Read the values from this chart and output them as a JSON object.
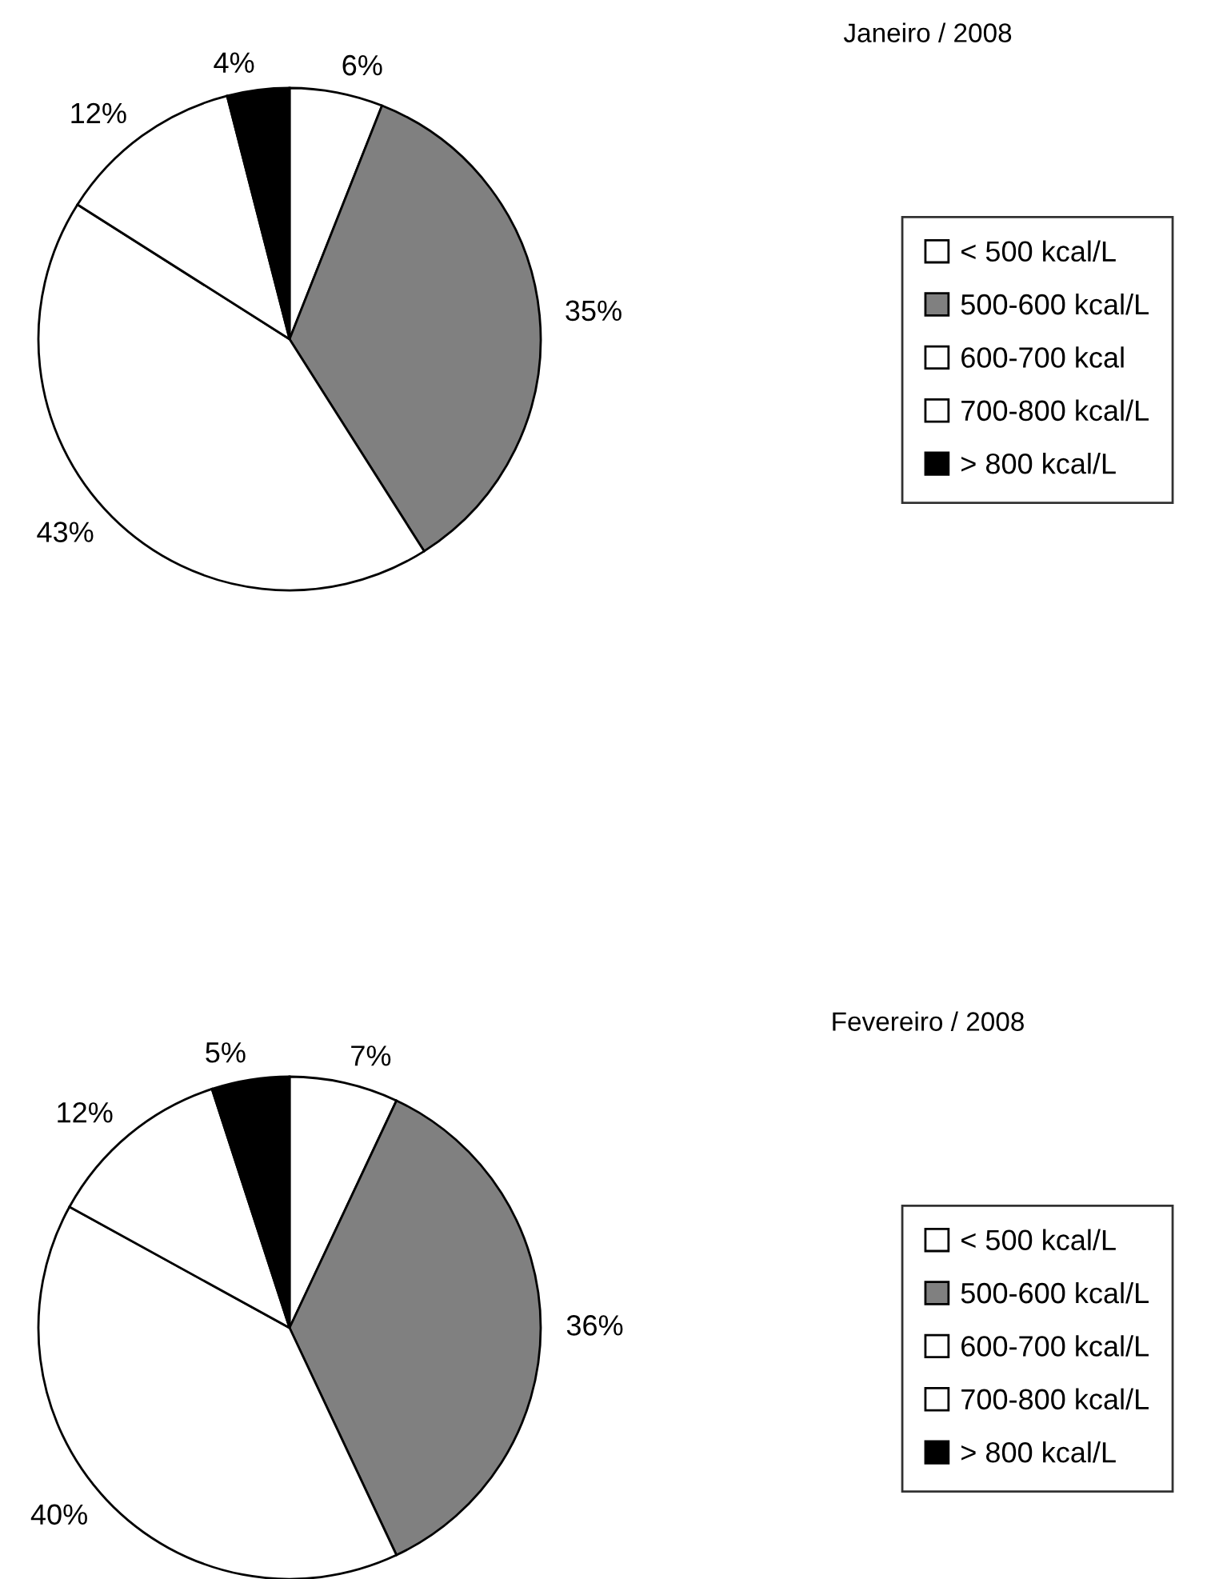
{
  "chart_data": [
    {
      "type": "pie",
      "title": "Janeiro / 2008",
      "categories": [
        "< 500 kcal/L",
        "500-600 kcal/L",
        "600-700 kcal",
        "700-800 kcal/L",
        "> 800 kcal/L"
      ],
      "values": [
        6,
        35,
        43,
        12,
        4
      ],
      "value_labels": [
        "6%",
        "35%",
        "43%",
        "12%",
        "4%"
      ],
      "colors": [
        "#ffffff",
        "#808080",
        "#ffffff",
        "#ffffff",
        "#000000"
      ],
      "legend": "right"
    },
    {
      "type": "pie",
      "title": "Fevereiro / 2008",
      "categories": [
        "< 500 kcal/L",
        "500-600 kcal/L",
        "600-700 kcal/L",
        "700-800 kcal/L",
        "> 800 kcal/L"
      ],
      "values": [
        7,
        36,
        40,
        12,
        5
      ],
      "value_labels": [
        "7%",
        "36%",
        "40%",
        "12%",
        "5%"
      ],
      "colors": [
        "#ffffff",
        "#808080",
        "#ffffff",
        "#ffffff",
        "#000000"
      ],
      "legend": "right"
    }
  ]
}
